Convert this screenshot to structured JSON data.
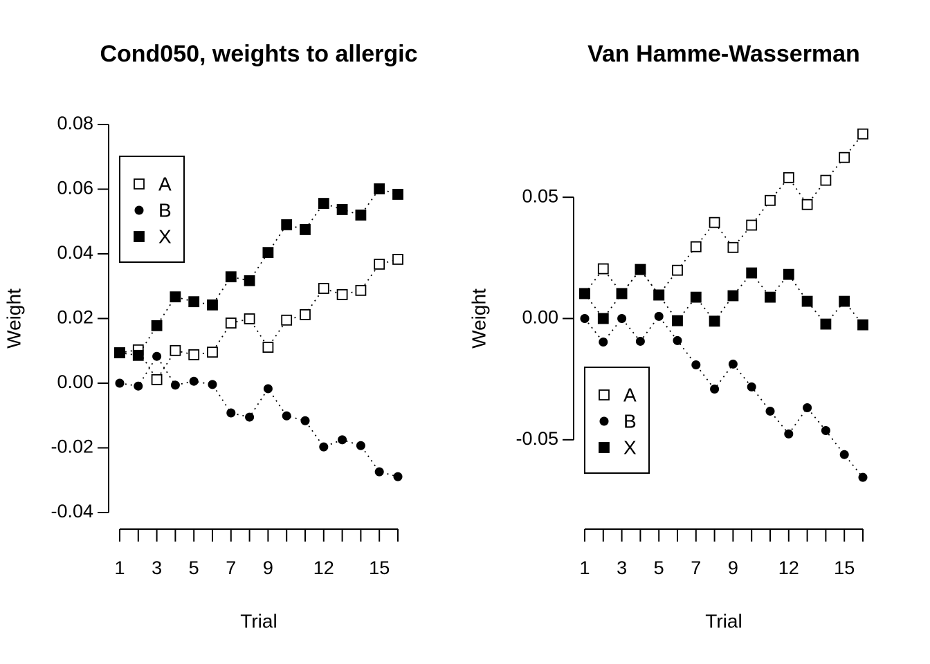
{
  "chart_data": [
    {
      "type": "line",
      "title": "Cond050, weights to allergic",
      "x_label": "Trial",
      "y_label": "Weight",
      "x": [
        1,
        2,
        3,
        4,
        5,
        6,
        7,
        8,
        9,
        10,
        11,
        12,
        13,
        14,
        15,
        16
      ],
      "xlim": [
        1,
        16
      ],
      "xticks": [
        1,
        3,
        5,
        7,
        9,
        12,
        15
      ],
      "ylim": [
        -0.04,
        0.08
      ],
      "yticks": [
        -0.04,
        -0.02,
        {
          "value": 0,
          "label": "0.00"
        },
        0.02,
        0.04,
        0.06,
        0.08
      ],
      "legend": "topleft",
      "series": [
        {
          "name": "A",
          "color": "#000000",
          "marker": "open-square",
          "values": [
            0.0094,
            0.0103,
            0.0011,
            0.0101,
            0.0088,
            0.0096,
            0.0186,
            0.0199,
            0.0111,
            0.0195,
            0.0212,
            0.0293,
            0.0274,
            0.0287,
            0.0368,
            0.0383
          ]
        },
        {
          "name": "B",
          "color": "#000000",
          "marker": "circle",
          "values": [
            0,
            -0.0009,
            0.0083,
            -0.0006,
            0.0006,
            -0.0004,
            -0.0092,
            -0.0105,
            -0.0017,
            -0.0101,
            -0.0116,
            -0.0197,
            -0.0175,
            -0.0193,
            -0.0274,
            -0.0289
          ]
        },
        {
          "name": "X",
          "color": "#000000",
          "marker": "filled-square",
          "values": [
            0.0094,
            0.0086,
            0.0178,
            0.0267,
            0.0252,
            0.0242,
            0.0329,
            0.0317,
            0.0404,
            0.049,
            0.0475,
            0.0556,
            0.0537,
            0.052,
            0.0601,
            0.0584
          ]
        }
      ]
    },
    {
      "type": "line",
      "title": "Van Hamme-Wasserman",
      "x_label": "Trial",
      "y_label": "Weight",
      "x": [
        1,
        2,
        3,
        4,
        5,
        6,
        7,
        8,
        9,
        10,
        11,
        12,
        13,
        14,
        15,
        16
      ],
      "xlim": [
        1,
        16
      ],
      "xticks": [
        1,
        3,
        5,
        7,
        9,
        12,
        15
      ],
      "ylim": [
        -0.08,
        0.08
      ],
      "yticks": [
        -0.05,
        {
          "value": 0,
          "label": "0.00"
        },
        0.05
      ],
      "legend": "bottomleft",
      "series": [
        {
          "name": "A",
          "color": "#000000",
          "marker": "open-square",
          "values": [
            0.0103,
            0.0205,
            0.0103,
            0.0202,
            0.0097,
            0.0199,
            0.0296,
            0.0396,
            0.0293,
            0.0385,
            0.0487,
            0.0581,
            0.047,
            0.057,
            0.0664,
            0.0761
          ]
        },
        {
          "name": "B",
          "color": "#000000",
          "marker": "circle",
          "values": [
            0,
            -0.0097,
            0,
            -0.0094,
            0.0009,
            -0.0091,
            -0.0191,
            -0.0291,
            -0.0188,
            -0.0282,
            -0.0382,
            -0.0476,
            -0.0368,
            -0.0462,
            -0.0561,
            -0.0655
          ]
        },
        {
          "name": "X",
          "color": "#000000",
          "marker": "filled-square",
          "values": [
            0.0103,
            0,
            0.0103,
            0.0202,
            0.0097,
            -0.0009,
            0.0088,
            -0.0011,
            0.0094,
            0.0188,
            0.0088,
            0.0182,
            0.0071,
            -0.0023,
            0.0071,
            -0.0026
          ]
        }
      ]
    }
  ]
}
